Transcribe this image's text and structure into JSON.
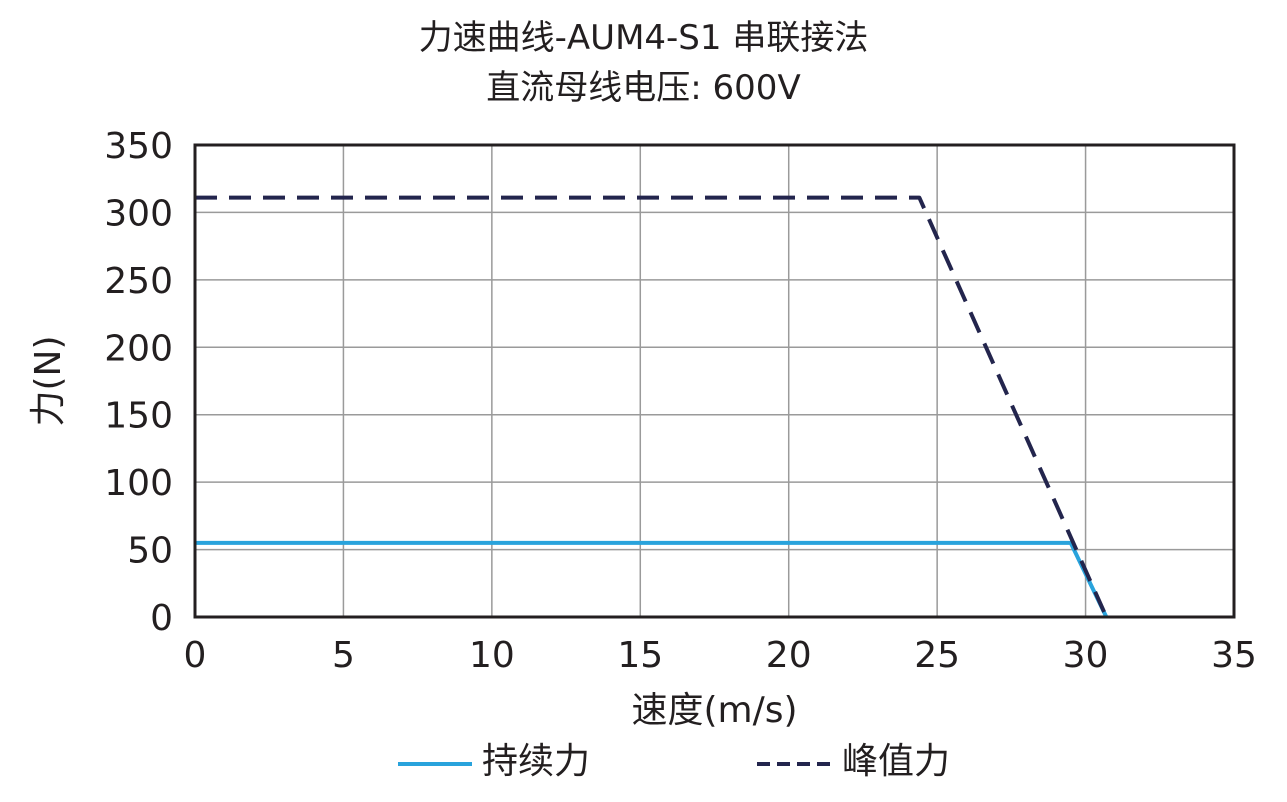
{
  "chart_data": {
    "type": "line",
    "title": "力速曲线-AUM4-S1 串联接法",
    "subtitle": "直流母线电压: 600V",
    "xlabel": "速度(m/s)",
    "ylabel": "力(N)",
    "xlim": [
      0,
      35
    ],
    "ylim": [
      0,
      350
    ],
    "xticks": [
      0,
      5,
      10,
      15,
      20,
      25,
      30,
      35
    ],
    "yticks": [
      0,
      50,
      100,
      150,
      200,
      250,
      300,
      350
    ],
    "grid": true,
    "legend_position": "bottom",
    "series": [
      {
        "name": "持续力",
        "style": "solid",
        "color": "#29a3dc",
        "points": [
          [
            0,
            55
          ],
          [
            29.5,
            55
          ],
          [
            30.7,
            0
          ]
        ]
      },
      {
        "name": "峰值力",
        "style": "dashed",
        "color": "#23254d",
        "points": [
          [
            0,
            311
          ],
          [
            24.4,
            311
          ],
          [
            30.7,
            0
          ]
        ]
      }
    ]
  }
}
